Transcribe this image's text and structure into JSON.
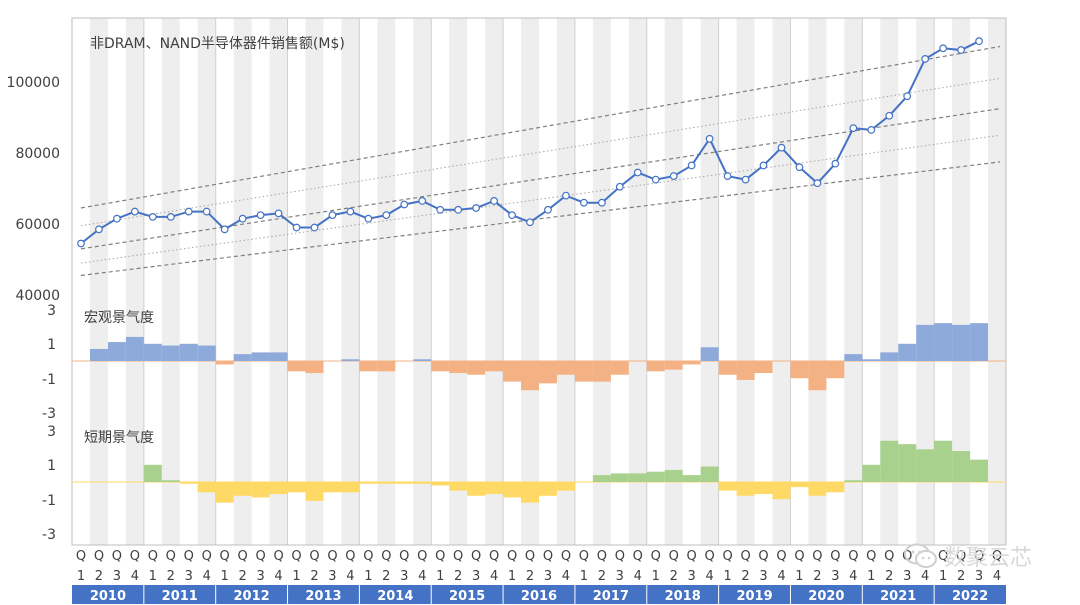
{
  "chart_data": [
    {
      "type": "line",
      "title": "非DRAM、NAND半导体器件销售额(M$)",
      "ylim": [
        40000,
        115000
      ],
      "yticks": [
        40000,
        60000,
        80000,
        100000
      ],
      "ytick_labels": [
        "40000",
        "60000",
        "80000",
        "100000"
      ],
      "grid": false,
      "series": [
        {
          "values": [
            54500,
            58500,
            61500,
            63500,
            62000,
            62000,
            63500,
            63500,
            58500,
            61500,
            62500,
            63000,
            59000,
            59000,
            62500,
            63500,
            61500,
            62500,
            65500,
            66500,
            64000,
            64000,
            64500,
            66500,
            62500,
            60500,
            64000,
            68000,
            66000,
            66000,
            70500,
            74500,
            72500,
            73500,
            76500,
            84000,
            73500,
            72500,
            76500,
            81500,
            76000,
            71500,
            77000,
            87000,
            86500,
            90500,
            96000,
            106500,
            109500,
            109000,
            111500
          ]
        }
      ],
      "trend_lines": {
        "dashed": [
          {
            "start": 64500,
            "end": 110000
          },
          {
            "start": 53000,
            "end": 92500
          },
          {
            "start": 45500,
            "end": 77500
          }
        ],
        "dotted": [
          {
            "start": 59500,
            "end": 101000
          },
          {
            "start": 49000,
            "end": 85000
          }
        ]
      }
    },
    {
      "type": "bar",
      "title": "宏观景气度",
      "ylim": [
        -3,
        3
      ],
      "yticks": [
        3,
        1,
        -1,
        -3
      ],
      "ytick_labels": [
        "3",
        "1",
        "-1",
        "-3"
      ],
      "colors": {
        "positive": "#8eaadb",
        "negative": "#f4b183"
      },
      "values": [
        0,
        0.7,
        1.1,
        1.4,
        1.0,
        0.9,
        1.0,
        0.9,
        -0.2,
        0.4,
        0.5,
        0.5,
        -0.6,
        -0.7,
        0,
        0.1,
        -0.6,
        -0.6,
        0,
        0.1,
        -0.6,
        -0.7,
        -0.8,
        -0.6,
        -1.2,
        -1.7,
        -1.3,
        -0.8,
        -1.2,
        -1.2,
        -0.8,
        0,
        -0.6,
        -0.5,
        -0.2,
        0.8,
        -0.8,
        -1.1,
        -0.7,
        0,
        -1.0,
        -1.7,
        -1.0,
        0.4,
        0.1,
        0.5,
        1.0,
        2.1,
        2.2,
        2.1,
        2.2
      ]
    },
    {
      "type": "bar",
      "title": "短期景气度",
      "ylim": [
        -3,
        3
      ],
      "yticks": [
        3,
        1,
        -1,
        -3
      ],
      "ytick_labels": [
        "3",
        "1",
        "-1",
        "-3"
      ],
      "colors": {
        "positive": "#a9d18e",
        "negative": "#ffd966"
      },
      "values": [
        0,
        0,
        0,
        0,
        1.0,
        0.1,
        -0.1,
        -0.6,
        -1.2,
        -0.8,
        -0.9,
        -0.7,
        -0.6,
        -1.1,
        -0.6,
        -0.6,
        -0.1,
        -0.1,
        -0.1,
        -0.1,
        -0.2,
        -0.5,
        -0.8,
        -0.7,
        -0.9,
        -1.2,
        -0.8,
        -0.5,
        0,
        0.4,
        0.5,
        0.5,
        0.6,
        0.7,
        0.4,
        0.9,
        -0.5,
        -0.8,
        -0.7,
        -1.0,
        -0.3,
        -0.8,
        -0.6,
        0.1,
        1.0,
        2.4,
        2.2,
        1.9,
        2.4,
        1.8,
        1.3
      ]
    }
  ],
  "quarters": {
    "prefix": "Q",
    "labels": [
      "1",
      "2",
      "3",
      "4"
    ]
  },
  "years": [
    "2010",
    "2011",
    "2012",
    "2013",
    "2014",
    "2015",
    "2016",
    "2017",
    "2018",
    "2019",
    "2020",
    "2021",
    "2022"
  ],
  "watermark": {
    "text": "数聚云芯",
    "icon": "wechat-icon"
  }
}
